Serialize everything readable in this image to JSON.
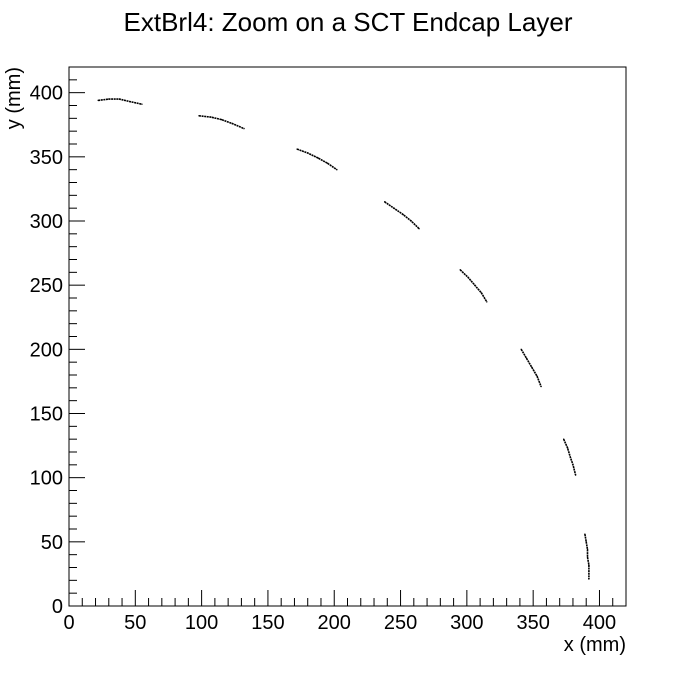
{
  "chart_data": {
    "type": "scatter",
    "title": "ExtBrl4: Zoom on a SCT Endcap Layer",
    "xlabel": "x (mm)",
    "ylabel": "y (mm)",
    "xlim": [
      0,
      420
    ],
    "ylim": [
      0,
      420
    ],
    "x_ticks": [
      0,
      50,
      100,
      150,
      200,
      250,
      300,
      350,
      400
    ],
    "y_ticks": [
      0,
      50,
      100,
      150,
      200,
      250,
      300,
      350,
      400
    ],
    "x_minor_step": 10,
    "y_minor_step": 10,
    "grid": false,
    "legend": "none",
    "marker_color": "#000000",
    "series": [
      {
        "segments": [
          {
            "x": [
              22,
              30,
              38,
              46,
              55
            ],
            "y": [
              394,
              395,
              395,
              393,
              391
            ]
          },
          {
            "x": [
              98,
              107,
              115,
              123,
              132
            ],
            "y": [
              382,
              381,
              379,
              376,
              372
            ]
          },
          {
            "x": [
              172,
              180,
              188,
              195,
              202
            ],
            "y": [
              356,
              353,
              349,
              345,
              340
            ]
          },
          {
            "x": [
              238,
              245,
              252,
              258,
              264
            ],
            "y": [
              315,
              310,
              305,
              300,
              294
            ]
          },
          {
            "x": [
              295,
              301,
              306,
              311,
              315
            ],
            "y": [
              262,
              256,
              250,
              244,
              237
            ]
          },
          {
            "x": [
              341,
              345,
              349,
              353,
              356
            ],
            "y": [
              200,
              193,
              186,
              179,
              171
            ]
          },
          {
            "x": [
              373,
              376,
              378,
              380,
              382
            ],
            "y": [
              130,
              123,
              116,
              110,
              102
            ]
          },
          {
            "x": [
              389,
              390,
              391,
              391,
              392,
              392
            ],
            "y": [
              56,
              50,
              44,
              38,
              32,
              21
            ]
          }
        ]
      }
    ]
  }
}
